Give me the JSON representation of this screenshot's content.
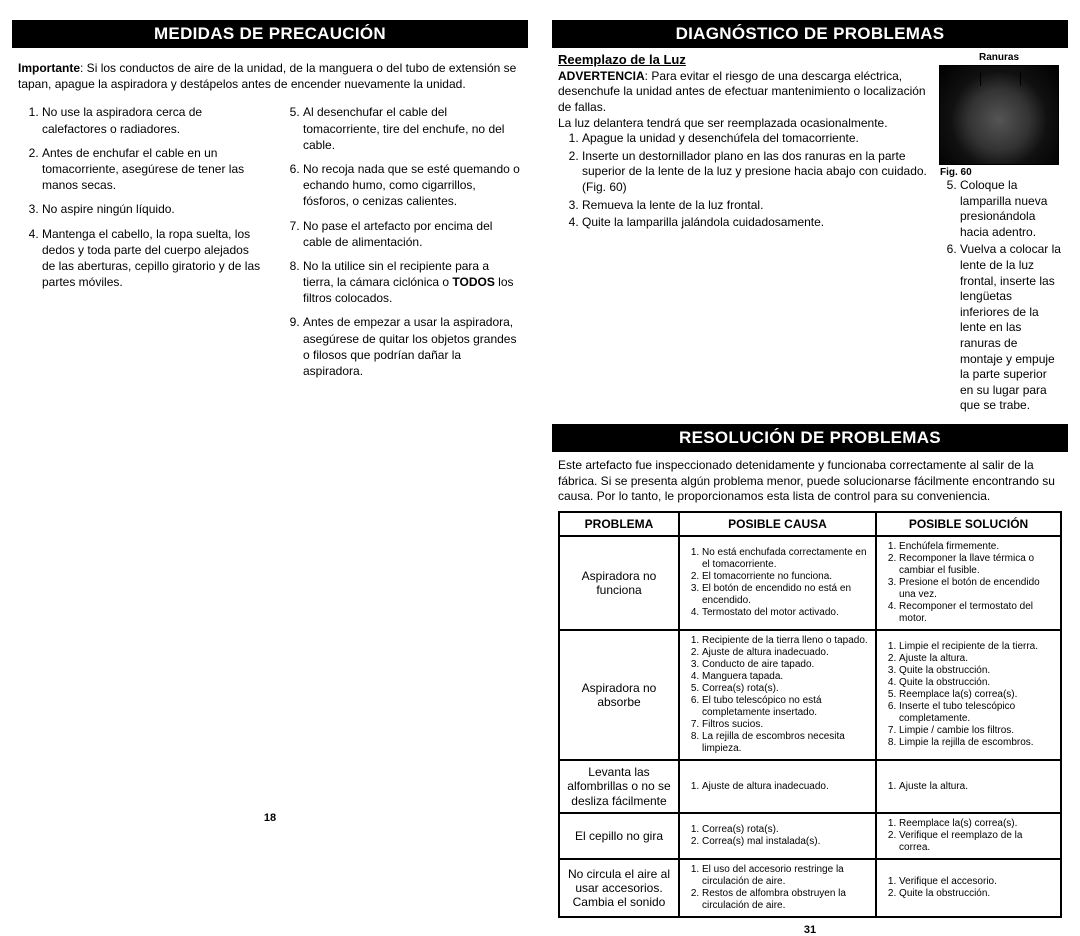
{
  "left": {
    "header": "MEDIDAS DE PRECAUCIÓN",
    "intro_bold": "Importante",
    "intro_rest": ": Si los conductos de aire de la unidad, de la manguera o del tubo de extensión se tapan, apague la aspiradora y destápelos antes de encender nuevamente la unidad.",
    "col1": [
      "No use la aspiradora cerca de calefactores o radiadores.",
      "Antes de enchufar el cable en un tomacorriente, asegúrese de tener las manos secas.",
      "No aspire ningún líquido.",
      "Mantenga el cabello, la ropa suelta, los dedos y toda parte del cuerpo alejados de las aberturas, cepillo giratorio y de las partes móviles."
    ],
    "col2": [
      "Al desenchufar el cable del tomacorriente, tire del enchufe, no del cable.",
      "No recoja nada que se esté quemando o echando humo, como cigarrillos, fósforos, o cenizas calientes.",
      "No pase el artefacto por encima del cable de alimentación.",
      "No la utilice sin el recipiente para a tierra, la cámara ciclónica o TODOS los filtros colocados.",
      "Antes de empezar a usar la aspiradora, asegúrese de quitar los objetos grandes o filosos que podrían dañar la aspiradora."
    ],
    "col2_bold": "TODOS",
    "pagenum": "18"
  },
  "right": {
    "header1": "DIAGNÓSTICO DE PROBLEMAS",
    "subhead": "Reemplazo de la Luz",
    "warn_label": "ADVERTENCIA",
    "warn_rest": ": Para evitar el riesgo de una descarga eléctrica, desenchufe la unidad antes de efectuar mantenimiento o localización de fallas.",
    "diag_note": "La luz delantera tendrá que ser reemplazada ocasionalmente.",
    "diag_left": [
      "Apague la unidad y desenchúfela del tomacorriente.",
      "Inserte un destornillador plano en las dos ranuras en la parte superior de la lente de la luz y presione hacia abajo con cuidado. (Fig. 60)",
      "Remueva la lente de la luz frontal.",
      "Quite la lamparilla jalándola cuidadosamente."
    ],
    "diag_right": [
      "Coloque la lamparilla nueva presionándola hacia adentro.",
      "Vuelva a colocar la lente de la luz frontal, inserte las lengüetas inferiores de la lente en las ranuras de montaje y empuje la parte superior en su lugar para que se trabe."
    ],
    "fig_label_top": "Ranuras",
    "fig_label_bottom": "Fig. 60",
    "header2": "RESOLUCIÓN DE PROBLEMAS",
    "resol_intro": "Este artefacto fue inspeccionado detenidamente y funcionaba correctamente al salir de la fábrica. Si se presenta algún problema menor, puede solucionarse fácilmente encontrando su causa. Por lo tanto, le proporcionamos esta lista de control para su conveniencia.",
    "table": {
      "headers": [
        "PROBLEMA",
        "POSIBLE CAUSA",
        "POSIBLE SOLUCIÓN"
      ],
      "rows": [
        {
          "problem": "Aspiradora no funciona",
          "cause": [
            "No está enchufada correctamente en el tomacorriente.",
            "El tomacorriente no funciona.",
            "El botón de encendido no está en encendido.",
            "Termostato del motor activado."
          ],
          "solution": [
            "Enchúfela firmemente.",
            "Recomponer la llave térmica o cambiar el fusible.",
            "Presione el botón de encendido una vez.",
            "Recomponer el termostato del motor."
          ]
        },
        {
          "problem": "Aspiradora no absorbe",
          "cause": [
            "Recipiente de la tierra lleno o tapado.",
            "Ajuste de altura inadecuado.",
            "Conducto de aire tapado.",
            "Manguera tapada.",
            "Correa(s) rota(s).",
            "El tubo telescópico no está completamente insertado.",
            "Filtros sucios.",
            "La rejilla de escombros necesita limpieza."
          ],
          "solution": [
            "Limpie el recipiente de la tierra.",
            "Ajuste la altura.",
            "Quite la obstrucción.",
            "Quite la obstrucción.",
            "Reemplace la(s) correa(s).",
            "Inserte el tubo telescópico completamente.",
            "Limpie / cambie los filtros.",
            "Limpie la rejilla de escombros."
          ]
        },
        {
          "problem": "Levanta las alfombrillas o no se desliza fácilmente",
          "cause": [
            "Ajuste de altura inadecuado."
          ],
          "solution": [
            "Ajuste la altura."
          ]
        },
        {
          "problem": "El cepillo no gira",
          "cause": [
            "Correa(s) rota(s).",
            "Correa(s) mal instalada(s)."
          ],
          "solution": [
            "Reemplace la(s) correa(s).",
            "Verifique el reemplazo de la correa."
          ]
        },
        {
          "problem": "No circula el aire al usar accesorios. Cambia el sonido",
          "cause": [
            "El uso del accesorio restringe la circulación de aire.",
            "Restos de alfombra obstruyen la circulación de aire."
          ],
          "solution": [
            "Verifique el accesorio.",
            "Quite la obstrucción."
          ]
        }
      ]
    },
    "pagenum": "31"
  }
}
